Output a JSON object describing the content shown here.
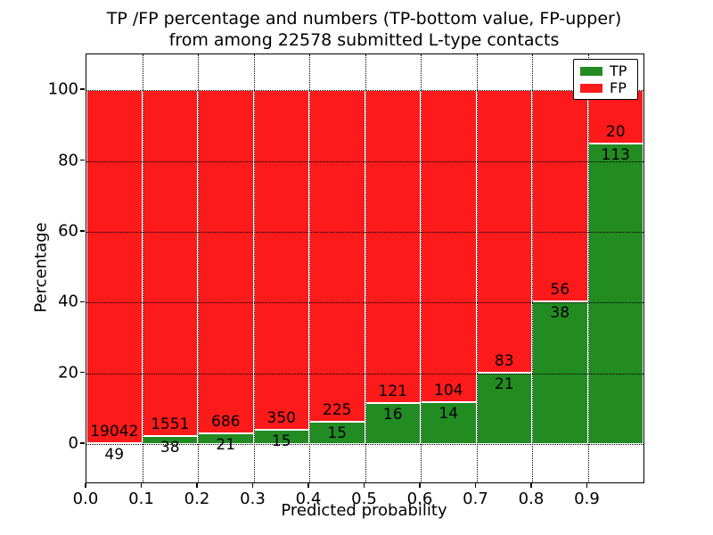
{
  "chart_data": {
    "type": "bar",
    "stacked": true,
    "title_line1": "TP /FP percentage and numbers (TP-bottom value, FP-upper)",
    "title_line2": "from among 22578 submitted L-type contacts",
    "xlabel": "Predicted probability",
    "ylabel": "Percentage",
    "xlim": [
      0.0,
      1.0
    ],
    "ylim": [
      -10.8,
      110.1
    ],
    "xticks": [
      0.0,
      0.1,
      0.2,
      0.3,
      0.4,
      0.5,
      0.6,
      0.7,
      0.8,
      0.9
    ],
    "xtick_labels": [
      "0.0",
      "0.1",
      "0.2",
      "0.3",
      "0.4",
      "0.5",
      "0.6",
      "0.7",
      "0.8",
      "0.9"
    ],
    "yticks": [
      0,
      20,
      40,
      60,
      80,
      100
    ],
    "ytick_labels": [
      "0",
      "20",
      "40",
      "60",
      "80",
      "100"
    ],
    "grid": true,
    "colors": {
      "tp": "#228b22",
      "fp": "#fc1a1a"
    },
    "legend": {
      "position": "upper right",
      "entries": [
        {
          "label": "TP",
          "color": "#228b22"
        },
        {
          "label": "FP",
          "color": "#fc1a1a"
        }
      ]
    },
    "bins": [
      {
        "range": [
          0.0,
          0.1
        ],
        "tp_count": 49,
        "fp_count": 19042,
        "tp_pct": 0.26,
        "fp_pct": 99.74
      },
      {
        "range": [
          0.1,
          0.2
        ],
        "tp_count": 38,
        "fp_count": 1551,
        "tp_pct": 2.39,
        "fp_pct": 97.61
      },
      {
        "range": [
          0.2,
          0.3
        ],
        "tp_count": 21,
        "fp_count": 686,
        "tp_pct": 2.97,
        "fp_pct": 97.03
      },
      {
        "range": [
          0.3,
          0.4
        ],
        "tp_count": 15,
        "fp_count": 350,
        "tp_pct": 4.11,
        "fp_pct": 95.89
      },
      {
        "range": [
          0.4,
          0.5
        ],
        "tp_count": 15,
        "fp_count": 225,
        "tp_pct": 6.25,
        "fp_pct": 93.75
      },
      {
        "range": [
          0.5,
          0.6
        ],
        "tp_count": 16,
        "fp_count": 121,
        "tp_pct": 11.68,
        "fp_pct": 88.32
      },
      {
        "range": [
          0.6,
          0.7
        ],
        "tp_count": 14,
        "fp_count": 104,
        "tp_pct": 11.86,
        "fp_pct": 88.14
      },
      {
        "range": [
          0.7,
          0.8
        ],
        "tp_count": 21,
        "fp_count": 83,
        "tp_pct": 20.19,
        "fp_pct": 79.81
      },
      {
        "range": [
          0.8,
          0.9
        ],
        "tp_count": 38,
        "fp_count": 56,
        "tp_pct": 40.43,
        "fp_pct": 59.57
      },
      {
        "range": [
          0.9,
          1.0
        ],
        "tp_count": 113,
        "fp_count": 20,
        "tp_pct": 84.96,
        "fp_pct": 15.04
      }
    ]
  }
}
